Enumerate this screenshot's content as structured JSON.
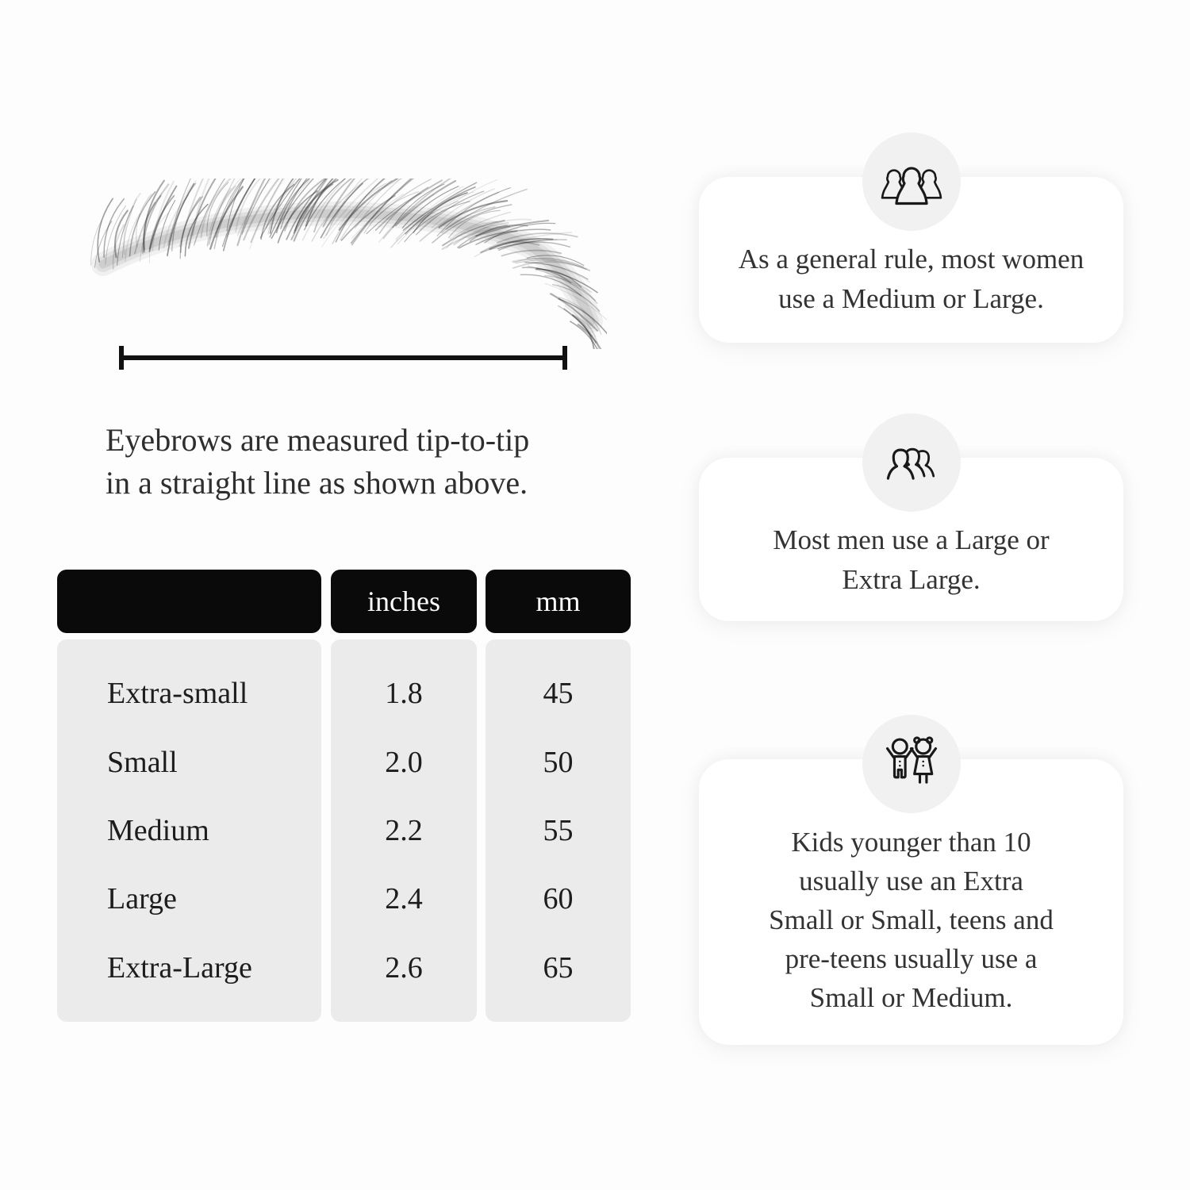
{
  "page": {
    "background": "#fdfdfd",
    "card_background": "#ffffff",
    "icon_circle_color": "#f1f1f1",
    "table_header_bg": "#0a0a0a",
    "table_body_bg": "#ebebeb",
    "text_color": "#2e2e2e"
  },
  "measurement": {
    "caption_lines": [
      "Eyebrows are measured tip-to-tip",
      "in a straight line as shown above."
    ]
  },
  "size_table": {
    "columns": [
      "",
      "inches",
      "mm"
    ],
    "rows": [
      {
        "label": "Extra-small",
        "inches": "1.8",
        "mm": "45"
      },
      {
        "label": "Small",
        "inches": "2.0",
        "mm": "50"
      },
      {
        "label": "Medium",
        "inches": "2.2",
        "mm": "55"
      },
      {
        "label": "Large",
        "inches": "2.4",
        "mm": "60"
      },
      {
        "label": "Extra-Large",
        "inches": "2.6",
        "mm": "65"
      }
    ]
  },
  "cards": [
    {
      "icon": "women-group-icon",
      "lines": [
        "As a general rule, most women",
        "use a Medium or Large."
      ]
    },
    {
      "icon": "men-group-icon",
      "lines": [
        "Most men use a Large or",
        "Extra Large."
      ]
    },
    {
      "icon": "kids-icon",
      "lines": [
        "Kids younger than 10",
        "usually use an Extra",
        "Small or Small, teens and",
        "pre-teens usually use a",
        "Small or Medium."
      ]
    }
  ],
  "chart_data": {
    "type": "table",
    "columns": [
      "",
      "inches",
      "mm"
    ],
    "rows": [
      [
        "Extra-small",
        "1.8",
        "45"
      ],
      [
        "Small",
        "2.0",
        "50"
      ],
      [
        "Medium",
        "2.2",
        "55"
      ],
      [
        "Large",
        "2.4",
        "60"
      ],
      [
        "Extra-Large",
        "2.6",
        "65"
      ]
    ]
  }
}
